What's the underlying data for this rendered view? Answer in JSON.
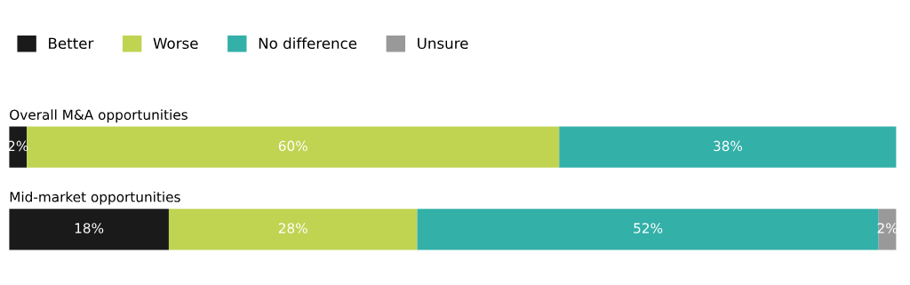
{
  "chart_data": {
    "type": "bar",
    "orientation": "horizontal",
    "stacked": true,
    "legend": "top left",
    "categories": [
      "Overall M&A opportunities",
      "Mid-market opportunities"
    ],
    "series": [
      {
        "name": "Better",
        "color": "#1a1a1a",
        "values": [
          2,
          18
        ],
        "value_labels": [
          "2%",
          "18%"
        ]
      },
      {
        "name": "Worse",
        "color": "#c0d452",
        "values": [
          60,
          28
        ],
        "value_labels": [
          "60%",
          "28%"
        ]
      },
      {
        "name": "No difference",
        "color": "#33b0a8",
        "values": [
          38,
          52
        ],
        "value_labels": [
          "38%",
          "52%"
        ]
      },
      {
        "name": "Unsure",
        "color": "#999999",
        "values": [
          null,
          2
        ],
        "value_labels": [
          null,
          "2%"
        ]
      }
    ]
  }
}
